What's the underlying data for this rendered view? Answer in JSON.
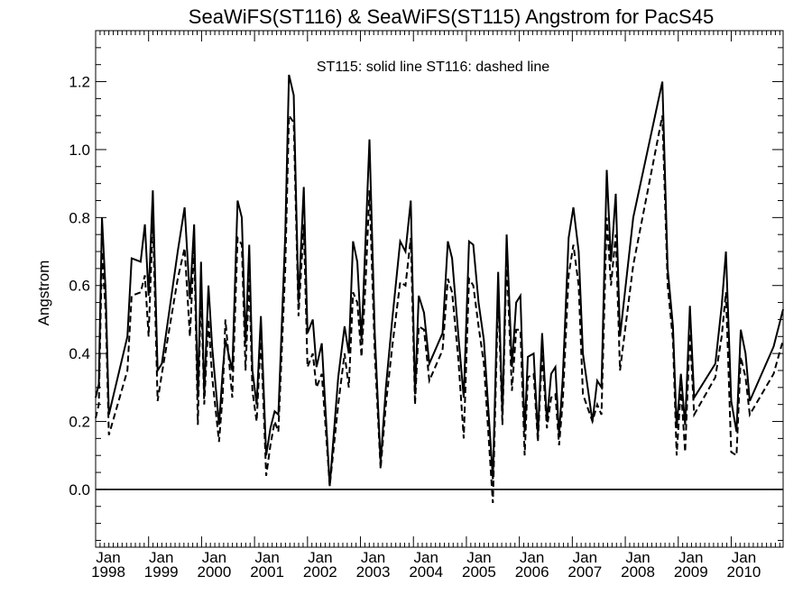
{
  "chart_data": {
    "type": "line",
    "title": "SeaWiFS(ST116) & SeaWiFS(ST115)  Angstrom for PacS45",
    "annotation": "ST115: solid line   ST116: dashed line",
    "ylabel": "Angstrom",
    "xlabel": "",
    "ylim": [
      -0.17,
      1.35
    ],
    "xlim": [
      1998.0,
      2010.98
    ],
    "x_axis_type": "date",
    "x_tick_labels": [
      {
        "month": "Jan",
        "year": "1998",
        "x": 1998.0
      },
      {
        "month": "Jan",
        "year": "1999",
        "x": 1999.0
      },
      {
        "month": "Jan",
        "year": "2000",
        "x": 2000.0
      },
      {
        "month": "Jan",
        "year": "2001",
        "x": 2001.0
      },
      {
        "month": "Jan",
        "year": "2002",
        "x": 2002.0
      },
      {
        "month": "Jan",
        "year": "2003",
        "x": 2003.0
      },
      {
        "month": "Jan",
        "year": "2004",
        "x": 2004.0
      },
      {
        "month": "Jan",
        "year": "2005",
        "x": 2005.0
      },
      {
        "month": "Jan",
        "year": "2006",
        "x": 2006.0
      },
      {
        "month": "Jan",
        "year": "2007",
        "x": 2007.0
      },
      {
        "month": "Jan",
        "year": "2008",
        "x": 2008.0
      },
      {
        "month": "Jan",
        "year": "2009",
        "x": 2009.0
      },
      {
        "month": "Jan",
        "year": "2010",
        "x": 2010.0
      }
    ],
    "y_ticks": [
      0.0,
      0.2,
      0.4,
      0.6,
      0.8,
      1.0,
      1.2
    ],
    "y_tick_labels": [
      "0.0",
      "0.2",
      "0.4",
      "0.6",
      "0.8",
      "1.0",
      "1.2"
    ],
    "zero_line": 0.0,
    "grid": false,
    "series": [
      {
        "style": "solid",
        "points": [
          [
            1998.0,
            0.27
          ],
          [
            1998.06,
            0.31
          ],
          [
            1998.12,
            0.8
          ],
          [
            1998.19,
            0.58
          ],
          [
            1998.25,
            0.22
          ],
          [
            1998.6,
            0.45
          ],
          [
            1998.68,
            0.68
          ],
          [
            1998.85,
            0.67
          ],
          [
            1998.93,
            0.78
          ],
          [
            1999.0,
            0.57
          ],
          [
            1999.08,
            0.88
          ],
          [
            1999.17,
            0.35
          ],
          [
            1999.25,
            0.37
          ],
          [
            1999.55,
            0.7
          ],
          [
            1999.68,
            0.83
          ],
          [
            1999.78,
            0.56
          ],
          [
            1999.86,
            0.78
          ],
          [
            1999.93,
            0.27
          ],
          [
            1999.99,
            0.67
          ],
          [
            2000.05,
            0.28
          ],
          [
            2000.13,
            0.6
          ],
          [
            2000.2,
            0.42
          ],
          [
            2000.33,
            0.19
          ],
          [
            2000.4,
            0.35
          ],
          [
            2000.45,
            0.44
          ],
          [
            2000.58,
            0.35
          ],
          [
            2000.68,
            0.85
          ],
          [
            2000.76,
            0.8
          ],
          [
            2000.83,
            0.43
          ],
          [
            2000.9,
            0.72
          ],
          [
            2000.96,
            0.35
          ],
          [
            2001.04,
            0.25
          ],
          [
            2001.12,
            0.51
          ],
          [
            2001.22,
            0.1
          ],
          [
            2001.3,
            0.18
          ],
          [
            2001.38,
            0.23
          ],
          [
            2001.45,
            0.22
          ],
          [
            2001.58,
            0.75
          ],
          [
            2001.65,
            1.22
          ],
          [
            2001.74,
            1.16
          ],
          [
            2001.83,
            0.55
          ],
          [
            2001.93,
            0.89
          ],
          [
            2002.0,
            0.46
          ],
          [
            2002.1,
            0.5
          ],
          [
            2002.17,
            0.36
          ],
          [
            2002.27,
            0.43
          ],
          [
            2002.42,
            0.01
          ],
          [
            2002.58,
            0.33
          ],
          [
            2002.7,
            0.48
          ],
          [
            2002.78,
            0.4
          ],
          [
            2002.86,
            0.73
          ],
          [
            2002.94,
            0.67
          ],
          [
            2003.02,
            0.44
          ],
          [
            2003.1,
            0.75
          ],
          [
            2003.17,
            1.03
          ],
          [
            2003.27,
            0.46
          ],
          [
            2003.38,
            0.08
          ],
          [
            2003.48,
            0.3
          ],
          [
            2003.6,
            0.5
          ],
          [
            2003.75,
            0.73
          ],
          [
            2003.85,
            0.7
          ],
          [
            2003.95,
            0.85
          ],
          [
            2004.03,
            0.28
          ],
          [
            2004.1,
            0.57
          ],
          [
            2004.2,
            0.52
          ],
          [
            2004.3,
            0.37
          ],
          [
            2004.55,
            0.46
          ],
          [
            2004.65,
            0.73
          ],
          [
            2004.73,
            0.68
          ],
          [
            2004.85,
            0.45
          ],
          [
            2004.95,
            0.27
          ],
          [
            2005.05,
            0.73
          ],
          [
            2005.13,
            0.72
          ],
          [
            2005.23,
            0.55
          ],
          [
            2005.33,
            0.44
          ],
          [
            2005.5,
            0.03
          ],
          [
            2005.6,
            0.64
          ],
          [
            2005.68,
            0.22
          ],
          [
            2005.76,
            0.75
          ],
          [
            2005.86,
            0.36
          ],
          [
            2005.94,
            0.55
          ],
          [
            2006.02,
            0.57
          ],
          [
            2006.1,
            0.17
          ],
          [
            2006.16,
            0.39
          ],
          [
            2006.27,
            0.4
          ],
          [
            2006.35,
            0.16
          ],
          [
            2006.43,
            0.46
          ],
          [
            2006.52,
            0.2
          ],
          [
            2006.6,
            0.34
          ],
          [
            2006.68,
            0.36
          ],
          [
            2006.75,
            0.16
          ],
          [
            2006.82,
            0.33
          ],
          [
            2006.93,
            0.74
          ],
          [
            2007.02,
            0.83
          ],
          [
            2007.12,
            0.7
          ],
          [
            2007.2,
            0.4
          ],
          [
            2007.38,
            0.2
          ],
          [
            2007.47,
            0.32
          ],
          [
            2007.55,
            0.3
          ],
          [
            2007.65,
            0.94
          ],
          [
            2007.73,
            0.67
          ],
          [
            2007.82,
            0.87
          ],
          [
            2007.9,
            0.45
          ],
          [
            2008.15,
            0.8
          ],
          [
            2008.7,
            1.2
          ],
          [
            2008.8,
            0.65
          ],
          [
            2008.9,
            0.48
          ],
          [
            2008.97,
            0.18
          ],
          [
            2009.05,
            0.34
          ],
          [
            2009.13,
            0.19
          ],
          [
            2009.22,
            0.54
          ],
          [
            2009.3,
            0.27
          ],
          [
            2009.7,
            0.37
          ],
          [
            2009.82,
            0.54
          ],
          [
            2009.9,
            0.7
          ],
          [
            2010.0,
            0.26
          ],
          [
            2010.1,
            0.17
          ],
          [
            2010.18,
            0.47
          ],
          [
            2010.27,
            0.4
          ],
          [
            2010.35,
            0.26
          ],
          [
            2010.8,
            0.42
          ],
          [
            2010.98,
            0.53
          ]
        ]
      },
      {
        "style": "dashed",
        "points": [
          [
            1998.0,
            0.21
          ],
          [
            1998.06,
            0.25
          ],
          [
            1998.12,
            0.7
          ],
          [
            1998.19,
            0.52
          ],
          [
            1998.25,
            0.16
          ],
          [
            1998.6,
            0.35
          ],
          [
            1998.68,
            0.57
          ],
          [
            1998.85,
            0.58
          ],
          [
            1998.93,
            0.63
          ],
          [
            1999.0,
            0.45
          ],
          [
            1999.08,
            0.8
          ],
          [
            1999.17,
            0.26
          ],
          [
            1999.25,
            0.34
          ],
          [
            1999.55,
            0.62
          ],
          [
            1999.68,
            0.71
          ],
          [
            1999.78,
            0.45
          ],
          [
            1999.86,
            0.72
          ],
          [
            1999.93,
            0.19
          ],
          [
            1999.99,
            0.6
          ],
          [
            2000.05,
            0.25
          ],
          [
            2000.13,
            0.5
          ],
          [
            2000.2,
            0.33
          ],
          [
            2000.33,
            0.14
          ],
          [
            2000.4,
            0.28
          ],
          [
            2000.45,
            0.5
          ],
          [
            2000.58,
            0.27
          ],
          [
            2000.68,
            0.74
          ],
          [
            2000.76,
            0.72
          ],
          [
            2000.83,
            0.35
          ],
          [
            2000.9,
            0.62
          ],
          [
            2000.96,
            0.29
          ],
          [
            2001.04,
            0.2
          ],
          [
            2001.12,
            0.45
          ],
          [
            2001.22,
            0.04
          ],
          [
            2001.3,
            0.13
          ],
          [
            2001.38,
            0.2
          ],
          [
            2001.45,
            0.17
          ],
          [
            2001.58,
            0.65
          ],
          [
            2001.65,
            1.1
          ],
          [
            2001.74,
            1.08
          ],
          [
            2001.83,
            0.51
          ],
          [
            2001.93,
            0.78
          ],
          [
            2002.0,
            0.36
          ],
          [
            2002.1,
            0.4
          ],
          [
            2002.17,
            0.3
          ],
          [
            2002.27,
            0.34
          ],
          [
            2002.42,
            0.01
          ],
          [
            2002.58,
            0.25
          ],
          [
            2002.7,
            0.4
          ],
          [
            2002.78,
            0.3
          ],
          [
            2002.86,
            0.58
          ],
          [
            2002.94,
            0.55
          ],
          [
            2003.02,
            0.39
          ],
          [
            2003.1,
            0.62
          ],
          [
            2003.17,
            0.88
          ],
          [
            2003.27,
            0.4
          ],
          [
            2003.38,
            0.06
          ],
          [
            2003.48,
            0.25
          ],
          [
            2003.6,
            0.42
          ],
          [
            2003.75,
            0.61
          ],
          [
            2003.85,
            0.6
          ],
          [
            2003.95,
            0.74
          ],
          [
            2004.03,
            0.25
          ],
          [
            2004.1,
            0.48
          ],
          [
            2004.2,
            0.47
          ],
          [
            2004.3,
            0.32
          ],
          [
            2004.55,
            0.41
          ],
          [
            2004.65,
            0.62
          ],
          [
            2004.73,
            0.58
          ],
          [
            2004.85,
            0.38
          ],
          [
            2004.95,
            0.15
          ],
          [
            2005.05,
            0.62
          ],
          [
            2005.13,
            0.6
          ],
          [
            2005.23,
            0.48
          ],
          [
            2005.33,
            0.37
          ],
          [
            2005.5,
            -0.04
          ],
          [
            2005.6,
            0.58
          ],
          [
            2005.68,
            0.19
          ],
          [
            2005.76,
            0.68
          ],
          [
            2005.86,
            0.29
          ],
          [
            2005.94,
            0.47
          ],
          [
            2006.02,
            0.47
          ],
          [
            2006.1,
            0.1
          ],
          [
            2006.16,
            0.33
          ],
          [
            2006.27,
            0.34
          ],
          [
            2006.35,
            0.14
          ],
          [
            2006.43,
            0.4
          ],
          [
            2006.52,
            0.18
          ],
          [
            2006.6,
            0.27
          ],
          [
            2006.68,
            0.28
          ],
          [
            2006.75,
            0.13
          ],
          [
            2006.82,
            0.26
          ],
          [
            2006.93,
            0.63
          ],
          [
            2007.02,
            0.72
          ],
          [
            2007.12,
            0.6
          ],
          [
            2007.2,
            0.28
          ],
          [
            2007.38,
            0.2
          ],
          [
            2007.47,
            0.25
          ],
          [
            2007.55,
            0.22
          ],
          [
            2007.65,
            0.8
          ],
          [
            2007.73,
            0.6
          ],
          [
            2007.82,
            0.75
          ],
          [
            2007.9,
            0.35
          ],
          [
            2008.15,
            0.66
          ],
          [
            2008.7,
            1.1
          ],
          [
            2008.8,
            0.6
          ],
          [
            2008.9,
            0.44
          ],
          [
            2008.97,
            0.1
          ],
          [
            2009.05,
            0.3
          ],
          [
            2009.13,
            0.11
          ],
          [
            2009.22,
            0.46
          ],
          [
            2009.3,
            0.22
          ],
          [
            2009.7,
            0.33
          ],
          [
            2009.82,
            0.45
          ],
          [
            2009.9,
            0.58
          ],
          [
            2010.0,
            0.11
          ],
          [
            2010.1,
            0.1
          ],
          [
            2010.18,
            0.39
          ],
          [
            2010.27,
            0.33
          ],
          [
            2010.35,
            0.22
          ],
          [
            2010.8,
            0.34
          ],
          [
            2010.98,
            0.44
          ]
        ]
      }
    ]
  }
}
